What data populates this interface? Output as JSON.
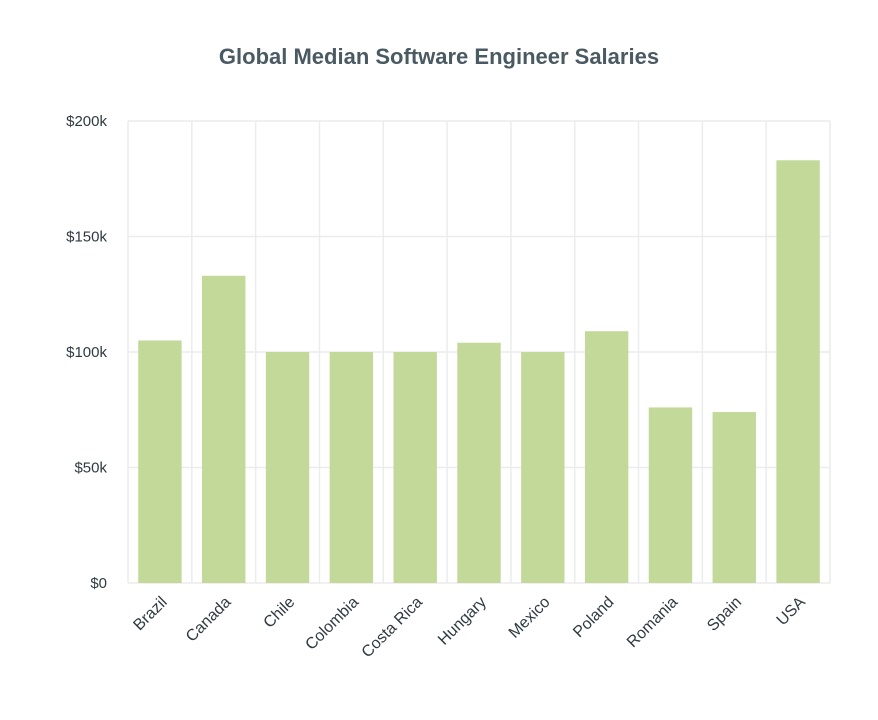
{
  "chart_data": {
    "type": "bar",
    "title": "Global Median Software Engineer Salaries",
    "categories": [
      "Brazil",
      "Canada",
      "Chile",
      "Colombia",
      "Costa Rica",
      "Hungary",
      "Mexico",
      "Poland",
      "Romania",
      "Spain",
      "USA"
    ],
    "values": [
      105000,
      133000,
      100000,
      100000,
      100000,
      104000,
      100000,
      109000,
      76000,
      74000,
      183000
    ],
    "ylim": [
      0,
      200000
    ],
    "yticks": [
      0,
      50000,
      100000,
      150000,
      200000
    ],
    "ytick_labels": [
      "$0",
      "$50k",
      "$100k",
      "$150k",
      "$200k"
    ],
    "xlabel": "",
    "ylabel": "",
    "grid": true,
    "bar_color": "#c2d99a"
  }
}
